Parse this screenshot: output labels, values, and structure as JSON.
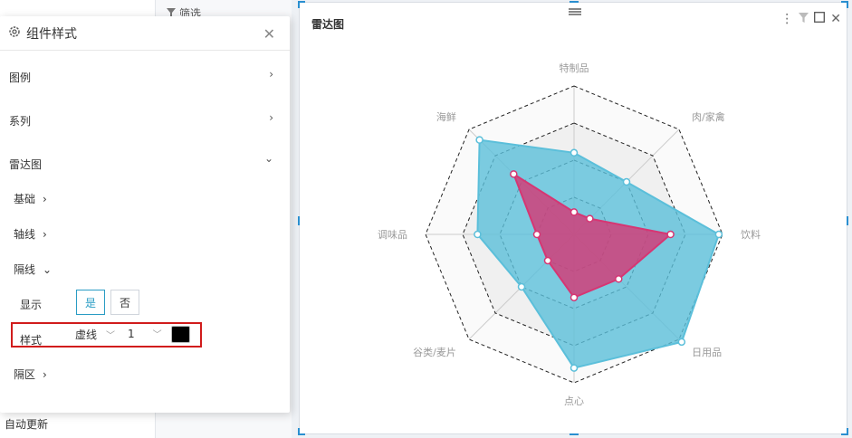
{
  "background": {
    "filter_label": "筛选",
    "auto_update_label": "自动更新"
  },
  "panel": {
    "title": "组件样式",
    "sections": {
      "legend": "图例",
      "series": "系列",
      "radar": "雷达图"
    },
    "radar_items": {
      "basic": "基础",
      "axis_line": "轴线",
      "split_line": "隔线",
      "split_area": "隔区"
    },
    "split_line": {
      "show_label": "显示",
      "yes_label": "是",
      "no_label": "否",
      "style_label": "样式",
      "line_type_value": "虚线",
      "line_width_value": "1",
      "color": "#000000"
    }
  },
  "chart_card": {
    "title": "雷达图"
  },
  "chart_data": {
    "type": "radar",
    "indicators": [
      "特制品",
      "肉/家禽",
      "饮料",
      "日用品",
      "点心",
      "谷类/麦片",
      "调味品",
      "海鲜"
    ],
    "max": 4,
    "rings": 4,
    "series": [
      {
        "values": [
          2.2,
          2.0,
          3.9,
          4.1,
          3.6,
          2.0,
          2.6,
          3.6
        ],
        "color": "#5bbfda"
      },
      {
        "values": [
          0.6,
          0.6,
          2.6,
          1.7,
          1.7,
          1.0,
          1.0,
          2.3
        ],
        "color": "#d63673"
      }
    ],
    "split_line_style": "dashed",
    "split_area": true
  }
}
